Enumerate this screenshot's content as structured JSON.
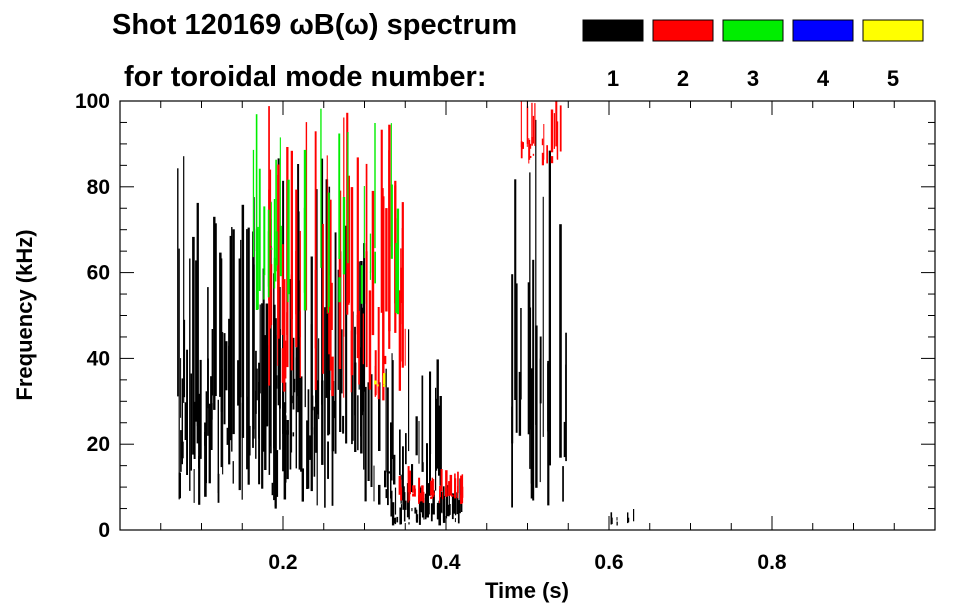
{
  "chart_data": {
    "type": "heatmap",
    "title": "Shot 120169 ωB(ω) spectrum",
    "subtitle": "for toroidal mode number:",
    "xlabel": "Time (s)",
    "ylabel": "Frequency (kHz)",
    "xlim": [
      0.0,
      1.0
    ],
    "ylim": [
      0,
      100
    ],
    "xticks": [
      0.2,
      0.4,
      0.6,
      0.8
    ],
    "xtick_labels": [
      "0.2",
      "0.4",
      "0.6",
      "0.8"
    ],
    "yticks": [
      0,
      20,
      40,
      60,
      80,
      100
    ],
    "ytick_labels": [
      "0",
      "20",
      "40",
      "60",
      "80",
      "100"
    ],
    "legend": [
      {
        "label": "1",
        "color": "#000000"
      },
      {
        "label": "2",
        "color": "#ff0000"
      },
      {
        "label": "3",
        "color": "#00ee00"
      },
      {
        "label": "4",
        "color": "#0000ff"
      },
      {
        "label": "5",
        "color": "#ffff00"
      }
    ],
    "features": [
      {
        "mode": 1,
        "t_start": 0.07,
        "t_end": 0.3,
        "f_low": 5,
        "f_high": 85,
        "density": "high",
        "note": "dense broadband n=1 activity with peak near 82 kHz at 0.13 s"
      },
      {
        "mode": 1,
        "t_start": 0.3,
        "t_end": 0.4,
        "f_low": 5,
        "f_high": 45,
        "density": "medium"
      },
      {
        "mode": 1,
        "t_start": 0.33,
        "t_end": 0.42,
        "f_low": 1,
        "f_high": 12,
        "density": "high",
        "note": "low-frequency n=1 mode"
      },
      {
        "mode": 2,
        "t_start": 0.34,
        "t_end": 0.42,
        "f_low": 6,
        "f_high": 15,
        "density": "medium",
        "note": "n=2 chirping mode"
      },
      {
        "mode": 2,
        "t_start": 0.18,
        "t_end": 0.35,
        "f_low": 30,
        "f_high": 100,
        "density": "medium"
      },
      {
        "mode": 3,
        "t_start": 0.15,
        "t_end": 0.35,
        "f_low": 50,
        "f_high": 100,
        "density": "low"
      },
      {
        "mode": 5,
        "t_start": 0.31,
        "t_end": 0.325,
        "f_low": 33,
        "f_high": 37,
        "density": "low"
      },
      {
        "mode": 1,
        "t_start": 0.48,
        "t_end": 0.55,
        "f_low": 1,
        "f_high": 100,
        "density": "medium"
      },
      {
        "mode": 2,
        "t_start": 0.49,
        "t_end": 0.54,
        "f_low": 85,
        "f_high": 100,
        "density": "medium"
      },
      {
        "mode": 1,
        "t_start": 0.6,
        "t_end": 0.63,
        "f_low": 1,
        "f_high": 5,
        "density": "low"
      }
    ]
  }
}
